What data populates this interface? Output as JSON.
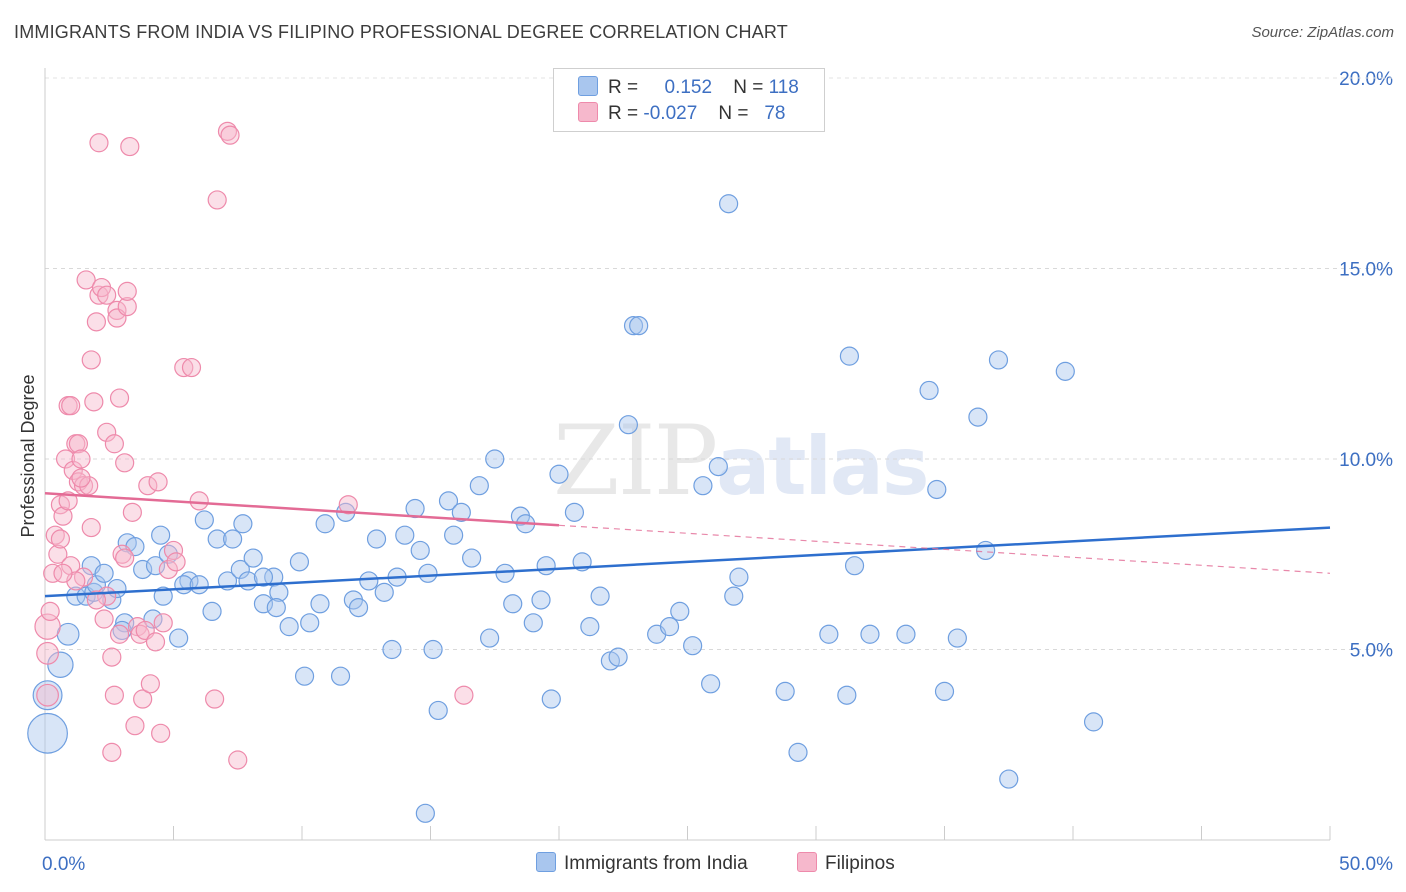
{
  "title": "IMMIGRANTS FROM INDIA VS FILIPINO PROFESSIONAL DEGREE CORRELATION CHART",
  "source": "Source: ZipAtlas.com",
  "watermark": {
    "zip": "ZIP",
    "atlas": "atlas"
  },
  "legend": {
    "rows": [
      {
        "r_label": "R =",
        "r_value": "0.152",
        "n_label": "N =",
        "n_value": "118",
        "color": "#a9c6ee"
      },
      {
        "r_label": "R =",
        "r_value": "-0.027",
        "n_label": "N =",
        "n_value": "78",
        "color": "#f6b8cc"
      }
    ]
  },
  "bottom_legend": {
    "india": "Immigrants from India",
    "filipinos": "Filipinos"
  },
  "chart_data": {
    "type": "scatter",
    "title": "IMMIGRANTS FROM INDIA VS FILIPINO PROFESSIONAL DEGREE CORRELATION CHART",
    "xlabel": "",
    "ylabel": "Professional Degree",
    "xlim": [
      0,
      50
    ],
    "ylim": [
      0,
      20
    ],
    "x_tick_labels": [
      "0.0%",
      "50.0%"
    ],
    "y_ticks": [
      5,
      10,
      15,
      20
    ],
    "y_tick_labels": [
      "5.0%",
      "10.0%",
      "15.0%",
      "20.0%"
    ],
    "grid": true,
    "legend_position": "top-center",
    "colors": {
      "india": "#6f9fe0",
      "india_fill": "#a9c6ee",
      "india_line": "#2e6fce",
      "filipinos": "#ee8aab",
      "filipinos_fill": "#f6b8cc",
      "filipinos_line": "#e36b95"
    },
    "series": [
      {
        "name": "Immigrants from India",
        "trend": {
          "x0": 0,
          "y0": 6.4,
          "x1": 50,
          "y1": 8.2
        },
        "points": [
          [
            0.1,
            2.8,
            2.2
          ],
          [
            0.1,
            3.8,
            1.6
          ],
          [
            0.6,
            4.6,
            1.4
          ],
          [
            0.9,
            5.4,
            1.2
          ],
          [
            1.2,
            6.4,
            1
          ],
          [
            1.6,
            6.4,
            1
          ],
          [
            1.8,
            7.2,
            1
          ],
          [
            1.9,
            6.5,
            1
          ],
          [
            2.0,
            6.7,
            1
          ],
          [
            2.3,
            7.0,
            1
          ],
          [
            2.6,
            6.3,
            1
          ],
          [
            2.8,
            6.6,
            1
          ],
          [
            3.1,
            5.7,
            1
          ],
          [
            3.2,
            7.8,
            1
          ],
          [
            3.5,
            7.7,
            1
          ],
          [
            3.8,
            7.1,
            1
          ],
          [
            4.2,
            5.8,
            1
          ],
          [
            4.3,
            7.2,
            1
          ],
          [
            4.5,
            8.0,
            1
          ],
          [
            4.8,
            7.5,
            1
          ],
          [
            5.2,
            5.3,
            1
          ],
          [
            5.6,
            6.8,
            1
          ],
          [
            6.2,
            8.4,
            1
          ],
          [
            6.5,
            6.0,
            1
          ],
          [
            6.7,
            7.9,
            1
          ],
          [
            7.1,
            6.8,
            1
          ],
          [
            7.3,
            7.9,
            1
          ],
          [
            7.6,
            7.1,
            1
          ],
          [
            7.7,
            8.3,
            1
          ],
          [
            7.9,
            6.8,
            1
          ],
          [
            8.1,
            7.4,
            1
          ],
          [
            8.5,
            6.2,
            1
          ],
          [
            8.9,
            6.9,
            1
          ],
          [
            9.1,
            6.5,
            1
          ],
          [
            9.5,
            5.6,
            1
          ],
          [
            9.9,
            7.3,
            1
          ],
          [
            10.1,
            4.3,
            1
          ],
          [
            10.3,
            5.7,
            1
          ],
          [
            10.7,
            6.2,
            1
          ],
          [
            10.9,
            8.3,
            1
          ],
          [
            11.5,
            4.3,
            1
          ],
          [
            11.7,
            8.6,
            1
          ],
          [
            12.0,
            6.3,
            1
          ],
          [
            12.2,
            6.1,
            1
          ],
          [
            12.6,
            6.8,
            1
          ],
          [
            12.9,
            7.9,
            1
          ],
          [
            13.2,
            6.5,
            1
          ],
          [
            13.5,
            5.0,
            1
          ],
          [
            13.7,
            6.9,
            1
          ],
          [
            14.0,
            8.0,
            1
          ],
          [
            14.4,
            8.7,
            1
          ],
          [
            14.6,
            7.6,
            1
          ],
          [
            14.9,
            7.0,
            1
          ],
          [
            15.1,
            5.0,
            1
          ],
          [
            15.3,
            3.4,
            1
          ],
          [
            15.7,
            8.9,
            1
          ],
          [
            15.9,
            8.0,
            1
          ],
          [
            16.2,
            8.6,
            1
          ],
          [
            16.6,
            7.4,
            1
          ],
          [
            16.9,
            9.3,
            1
          ],
          [
            17.3,
            5.3,
            1
          ],
          [
            17.5,
            10.0,
            1
          ],
          [
            17.9,
            7.0,
            1
          ],
          [
            18.2,
            6.2,
            1
          ],
          [
            18.5,
            8.5,
            1
          ],
          [
            18.7,
            8.3,
            1
          ],
          [
            19.0,
            5.7,
            1
          ],
          [
            19.3,
            6.3,
            1
          ],
          [
            19.5,
            7.2,
            1
          ],
          [
            19.7,
            3.7,
            1
          ],
          [
            20.0,
            9.6,
            1
          ],
          [
            20.6,
            8.6,
            1
          ],
          [
            20.9,
            7.3,
            1
          ],
          [
            21.2,
            5.6,
            1
          ],
          [
            21.6,
            6.4,
            1
          ],
          [
            22.0,
            4.7,
            1
          ],
          [
            22.3,
            4.8,
            1
          ],
          [
            22.7,
            10.9,
            1
          ],
          [
            22.9,
            13.5,
            1
          ],
          [
            23.1,
            13.5,
            1
          ],
          [
            23.8,
            5.4,
            1
          ],
          [
            24.3,
            5.6,
            1
          ],
          [
            24.7,
            6.0,
            1
          ],
          [
            25.2,
            5.1,
            1
          ],
          [
            25.6,
            9.3,
            1
          ],
          [
            25.9,
            4.1,
            1
          ],
          [
            26.2,
            9.8,
            1
          ],
          [
            26.6,
            16.7,
            1
          ],
          [
            26.8,
            6.4,
            1
          ],
          [
            27.0,
            6.9,
            1
          ],
          [
            28.8,
            3.9,
            1
          ],
          [
            29.3,
            2.3,
            1
          ],
          [
            30.5,
            5.4,
            1
          ],
          [
            31.3,
            12.7,
            1
          ],
          [
            31.5,
            7.2,
            1
          ],
          [
            31.2,
            3.8,
            1
          ],
          [
            32.1,
            5.4,
            1
          ],
          [
            33.5,
            5.4,
            1
          ],
          [
            34.4,
            11.8,
            1
          ],
          [
            34.7,
            9.2,
            1
          ],
          [
            35.0,
            3.9,
            1
          ],
          [
            35.5,
            5.3,
            1
          ],
          [
            36.3,
            11.1,
            1
          ],
          [
            36.6,
            7.6,
            1
          ],
          [
            37.1,
            12.6,
            1
          ],
          [
            37.5,
            1.6,
            1
          ],
          [
            39.7,
            12.3,
            1
          ],
          [
            40.8,
            3.1,
            1
          ],
          [
            14.8,
            0.7,
            1
          ],
          [
            5.4,
            6.7,
            1
          ],
          [
            6.0,
            6.7,
            1
          ],
          [
            8.5,
            6.9,
            1
          ],
          [
            3.0,
            5.5,
            1
          ],
          [
            4.6,
            6.4,
            1
          ],
          [
            9.0,
            6.1,
            1
          ]
        ]
      },
      {
        "name": "Filipinos",
        "trend": {
          "x0": 0,
          "y0": 9.1,
          "x1": 50,
          "y1": 7.0,
          "solid_until": 20
        },
        "points": [
          [
            0.1,
            5.6,
            1.4
          ],
          [
            0.1,
            4.9,
            1.2
          ],
          [
            0.1,
            3.8,
            1.2
          ],
          [
            0.2,
            6.0,
            1
          ],
          [
            0.3,
            7.0,
            1
          ],
          [
            0.4,
            8.0,
            1
          ],
          [
            0.5,
            7.5,
            1
          ],
          [
            0.6,
            8.8,
            1
          ],
          [
            0.7,
            8.5,
            1
          ],
          [
            0.8,
            10.0,
            1
          ],
          [
            0.9,
            11.4,
            1
          ],
          [
            1.0,
            7.2,
            1
          ],
          [
            1.0,
            11.4,
            1
          ],
          [
            1.1,
            9.7,
            1
          ],
          [
            1.2,
            10.4,
            1
          ],
          [
            1.3,
            10.4,
            1
          ],
          [
            1.3,
            9.4,
            1
          ],
          [
            1.4,
            10.0,
            1
          ],
          [
            1.5,
            9.3,
            1
          ],
          [
            1.6,
            14.7,
            1
          ],
          [
            1.7,
            9.3,
            1
          ],
          [
            1.8,
            12.6,
            1
          ],
          [
            1.8,
            8.2,
            1
          ],
          [
            1.9,
            11.5,
            1
          ],
          [
            2.0,
            13.6,
            1
          ],
          [
            2.1,
            18.3,
            1
          ],
          [
            2.1,
            14.3,
            1
          ],
          [
            2.2,
            14.5,
            1
          ],
          [
            2.3,
            5.8,
            1
          ],
          [
            2.4,
            14.3,
            1
          ],
          [
            2.4,
            6.4,
            1
          ],
          [
            2.4,
            10.7,
            1
          ],
          [
            2.6,
            4.8,
            1
          ],
          [
            2.6,
            2.3,
            1
          ],
          [
            2.7,
            10.4,
            1
          ],
          [
            2.7,
            3.8,
            1
          ],
          [
            2.8,
            13.9,
            1
          ],
          [
            2.8,
            13.7,
            1
          ],
          [
            2.9,
            11.6,
            1
          ],
          [
            3.0,
            7.5,
            1
          ],
          [
            3.1,
            9.9,
            1
          ],
          [
            3.1,
            7.4,
            1
          ],
          [
            3.2,
            14.0,
            1
          ],
          [
            3.2,
            14.4,
            1
          ],
          [
            3.3,
            18.2,
            1
          ],
          [
            3.4,
            8.6,
            1
          ],
          [
            3.5,
            3.0,
            1
          ],
          [
            3.6,
            5.6,
            1
          ],
          [
            3.7,
            5.4,
            1
          ],
          [
            3.8,
            3.7,
            1
          ],
          [
            3.9,
            5.5,
            1
          ],
          [
            4.0,
            9.3,
            1
          ],
          [
            4.1,
            4.1,
            1
          ],
          [
            4.3,
            5.2,
            1
          ],
          [
            4.4,
            9.4,
            1
          ],
          [
            4.5,
            2.8,
            1
          ],
          [
            4.6,
            5.7,
            1
          ],
          [
            4.8,
            7.1,
            1
          ],
          [
            5.0,
            7.6,
            1
          ],
          [
            5.4,
            12.4,
            1
          ],
          [
            5.7,
            12.4,
            1
          ],
          [
            6.0,
            8.9,
            1
          ],
          [
            6.6,
            3.7,
            1
          ],
          [
            6.7,
            16.8,
            1
          ],
          [
            7.1,
            18.6,
            1
          ],
          [
            7.2,
            18.5,
            1
          ],
          [
            7.5,
            2.1,
            1
          ],
          [
            11.8,
            8.8,
            1
          ],
          [
            16.3,
            3.8,
            1
          ],
          [
            0.6,
            7.9,
            1
          ],
          [
            1.5,
            6.9,
            1
          ],
          [
            2.0,
            6.3,
            1
          ],
          [
            2.9,
            5.4,
            1
          ],
          [
            0.9,
            8.9,
            1
          ],
          [
            1.2,
            6.8,
            1
          ],
          [
            1.4,
            9.5,
            1
          ],
          [
            0.7,
            7.0,
            1
          ],
          [
            5.1,
            7.3,
            1
          ]
        ]
      }
    ]
  }
}
